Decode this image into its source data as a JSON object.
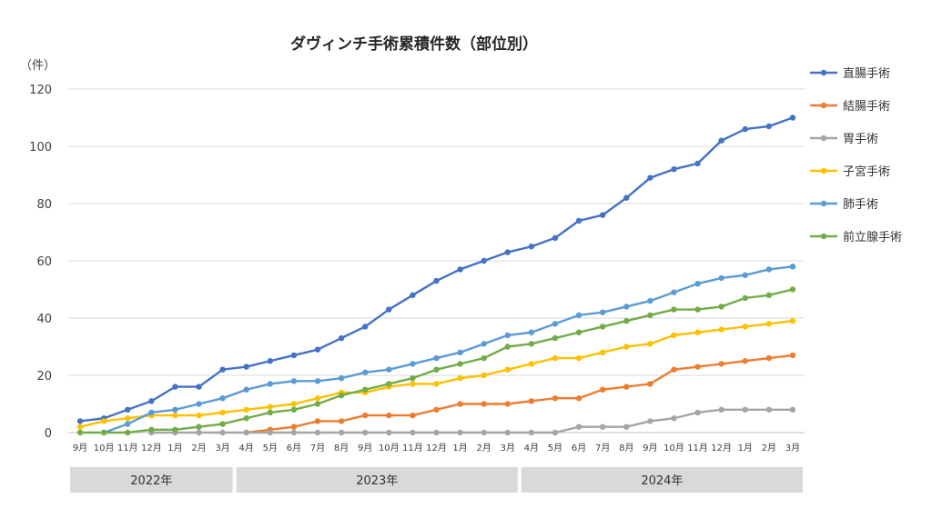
{
  "chart_data": {
    "type": "line",
    "title": "ダヴィンチ手術累積件数（部位別）",
    "ylabel": "（件）",
    "xlabel": "",
    "ylim": [
      0,
      120
    ],
    "yticks": [
      0,
      20,
      40,
      60,
      80,
      100,
      120
    ],
    "grid": true,
    "legend_position": "right",
    "categories": [
      "9月",
      "10月",
      "11月",
      "12月",
      "1月",
      "2月",
      "3月",
      "4月",
      "5月",
      "6月",
      "7月",
      "8月",
      "9月",
      "10月",
      "11月",
      "12月",
      "1月",
      "2月",
      "3月",
      "4月",
      "5月",
      "6月",
      "7月",
      "8月",
      "9月",
      "10月",
      "11月",
      "12月",
      "1月",
      "2月",
      "3月"
    ],
    "year_groups": [
      {
        "label": "2022年",
        "start": 0,
        "end": 6
      },
      {
        "label": "2023年",
        "start": 7,
        "end": 18
      },
      {
        "label": "2024年",
        "start": 19,
        "end": 30
      }
    ],
    "series": [
      {
        "name": "直腸手術",
        "color": "#4472C4",
        "values": [
          4,
          5,
          8,
          11,
          16,
          16,
          22,
          23,
          25,
          27,
          29,
          33,
          37,
          43,
          48,
          53,
          57,
          60,
          63,
          65,
          68,
          74,
          76,
          82,
          89,
          92,
          94,
          102,
          106,
          107,
          110
        ]
      },
      {
        "name": "結腸手術",
        "color": "#ED7D31",
        "values": [
          null,
          null,
          null,
          null,
          null,
          null,
          null,
          0,
          1,
          2,
          4,
          4,
          6,
          6,
          6,
          8,
          10,
          10,
          10,
          11,
          12,
          12,
          15,
          16,
          17,
          22,
          23,
          24,
          25,
          26,
          27
        ]
      },
      {
        "name": "胃手術",
        "color": "#A5A5A5",
        "values": [
          null,
          null,
          null,
          0,
          0,
          0,
          0,
          0,
          0,
          0,
          0,
          0,
          0,
          0,
          0,
          0,
          0,
          0,
          0,
          0,
          0,
          2,
          2,
          2,
          4,
          5,
          7,
          8,
          8,
          8,
          8
        ]
      },
      {
        "name": "子宮手術",
        "color": "#FFC000",
        "values": [
          2,
          4,
          5,
          6,
          6,
          6,
          7,
          8,
          9,
          10,
          12,
          14,
          14,
          16,
          17,
          17,
          19,
          20,
          22,
          24,
          26,
          26,
          28,
          30,
          31,
          34,
          35,
          36,
          37,
          38,
          39
        ]
      },
      {
        "name": "肺手術",
        "color": "#5B9BD5",
        "values": [
          null,
          0,
          3,
          7,
          8,
          10,
          12,
          15,
          17,
          18,
          18,
          19,
          21,
          22,
          24,
          26,
          28,
          31,
          34,
          35,
          38,
          41,
          42,
          44,
          46,
          49,
          52,
          54,
          55,
          57,
          58
        ]
      },
      {
        "name": "前立腺手術",
        "color": "#70AD47",
        "values": [
          0,
          0,
          0,
          1,
          1,
          2,
          3,
          5,
          7,
          8,
          10,
          13,
          15,
          17,
          19,
          22,
          24,
          26,
          30,
          31,
          33,
          35,
          37,
          39,
          41,
          43,
          43,
          44,
          47,
          48,
          50
        ]
      }
    ]
  }
}
